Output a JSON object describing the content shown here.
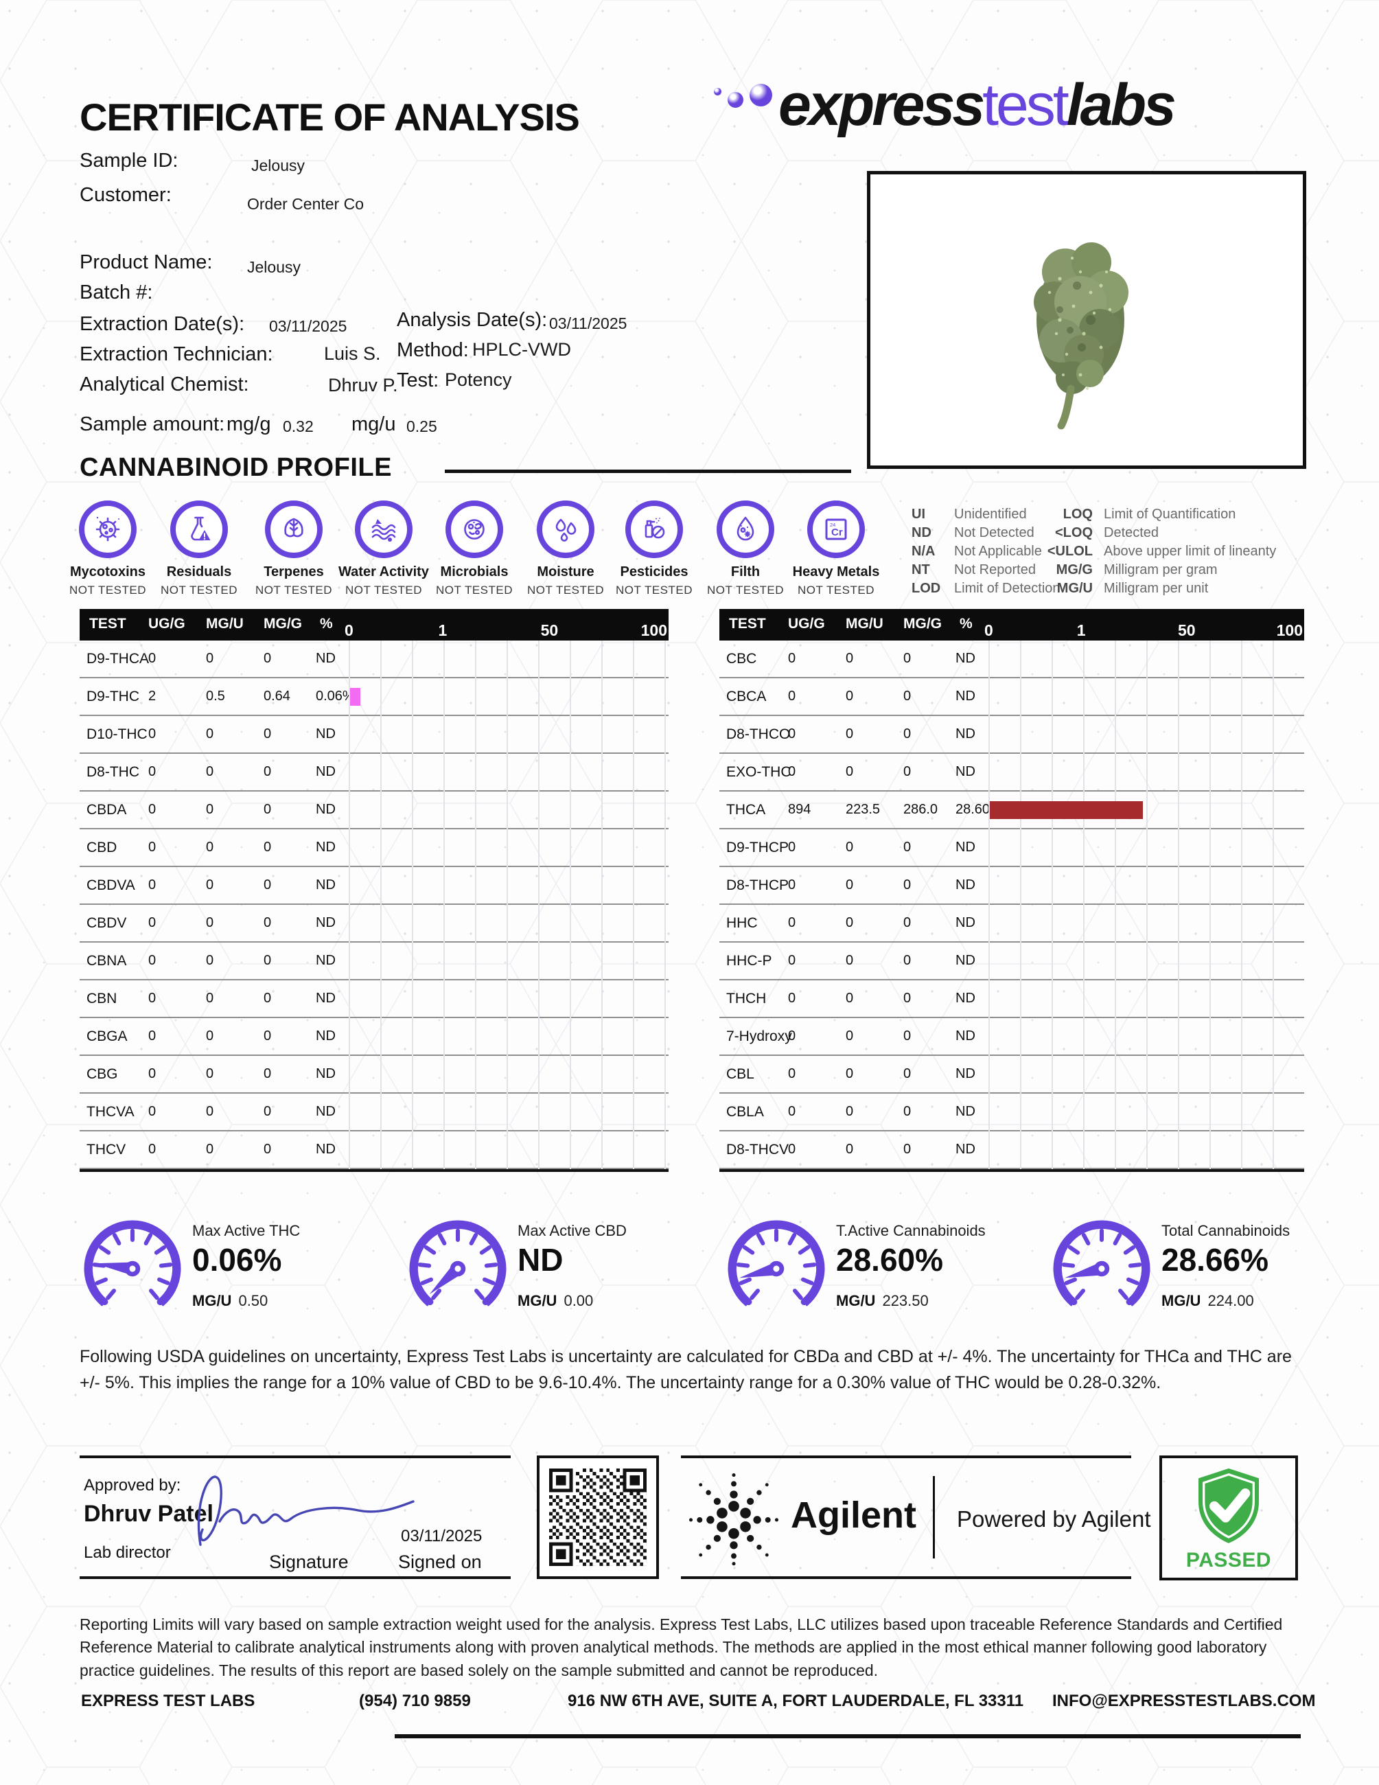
{
  "header": {
    "title": "CERTIFICATE OF ANALYSIS",
    "logo_express": "express",
    "logo_test": "test",
    "logo_labs": "labs"
  },
  "info": {
    "sample_id_label": "Sample ID:",
    "sample_id": "Jelousy",
    "customer_label": "Customer:",
    "customer": "Order Center Co",
    "product_name_label": "Product Name:",
    "product_name": "Jelousy",
    "batch_label": "Batch #:",
    "extraction_date_label": "Extraction Date(s):",
    "extraction_date": "03/11/2025",
    "analysis_date_label": "Analysis Date(s):",
    "analysis_date": "03/11/2025",
    "extraction_tech_label": "Extraction Technician:",
    "extraction_tech": "Luis S.",
    "method_label": "Method:",
    "method": "HPLC-VWD",
    "chemist_label": "Analytical Chemist:",
    "chemist": "Dhruv P.",
    "test_label": "Test:",
    "test": "Potency",
    "sample_amount_label": "Sample amount:",
    "mgg_label": "mg/g",
    "mgg_value": "0.32",
    "mgu_label": "mg/u",
    "mgu_value": "0.25"
  },
  "section_title": "CANNABINOID PROFILE",
  "screens": [
    {
      "name": "Mycotoxins",
      "status": "NOT TESTED"
    },
    {
      "name": "Residuals",
      "status": "NOT TESTED"
    },
    {
      "name": "Terpenes",
      "status": "NOT TESTED"
    },
    {
      "name": "Water Activity",
      "status": "NOT TESTED"
    },
    {
      "name": "Microbials",
      "status": "NOT TESTED"
    },
    {
      "name": "Moisture",
      "status": "NOT TESTED"
    },
    {
      "name": "Pesticides",
      "status": "NOT TESTED"
    },
    {
      "name": "Filth",
      "status": "NOT TESTED"
    },
    {
      "name": "Heavy Metals",
      "status": "NOT TESTED"
    }
  ],
  "legend_col1": [
    {
      "abbr": "UI",
      "desc": "Unidentified"
    },
    {
      "abbr": "ND",
      "desc": "Not Detected"
    },
    {
      "abbr": "N/A",
      "desc": "Not Applicable"
    },
    {
      "abbr": "NT",
      "desc": "Not Reported"
    },
    {
      "abbr": "LOD",
      "desc": "Limit of Detection"
    }
  ],
  "legend_col2": [
    {
      "abbr": "LOQ",
      "desc": "Limit of Quantification"
    },
    {
      "abbr": "<LOQ",
      "desc": "Detected"
    },
    {
      "abbr": "<ULOL",
      "desc": "Above upper limit of lineanty"
    },
    {
      "abbr": "MG/G",
      "desc": "Milligram per gram"
    },
    {
      "abbr": "MG/U",
      "desc": "Milligram per unit"
    }
  ],
  "table": {
    "headers": [
      "TEST",
      "UG/G",
      "MG/U",
      "MG/G",
      "%"
    ],
    "ticks": [
      "0",
      "1",
      "50",
      "100"
    ],
    "left_rows": [
      {
        "test": "D9-THCA",
        "ugg": "0",
        "mgu": "0",
        "mgg": "0",
        "pct": "ND",
        "bar": 0,
        "color": ""
      },
      {
        "test": "D9-THC",
        "ugg": "2",
        "mgu": "0.5",
        "mgg": "0.64",
        "pct": "0.06%",
        "bar": 3.2,
        "color": "#F26BF2"
      },
      {
        "test": "D10-THC",
        "ugg": "0",
        "mgu": "0",
        "mgg": "0",
        "pct": "ND",
        "bar": 0,
        "color": ""
      },
      {
        "test": "D8-THC",
        "ugg": "0",
        "mgu": "0",
        "mgg": "0",
        "pct": "ND",
        "bar": 0,
        "color": ""
      },
      {
        "test": "CBDA",
        "ugg": "0",
        "mgu": "0",
        "mgg": "0",
        "pct": "ND",
        "bar": 0,
        "color": ""
      },
      {
        "test": "CBD",
        "ugg": "0",
        "mgu": "0",
        "mgg": "0",
        "pct": "ND",
        "bar": 0,
        "color": ""
      },
      {
        "test": "CBDVA",
        "ugg": "0",
        "mgu": "0",
        "mgg": "0",
        "pct": "ND",
        "bar": 0,
        "color": ""
      },
      {
        "test": "CBDV",
        "ugg": "0",
        "mgu": "0",
        "mgg": "0",
        "pct": "ND",
        "bar": 0,
        "color": ""
      },
      {
        "test": "CBNA",
        "ugg": "0",
        "mgu": "0",
        "mgg": "0",
        "pct": "ND",
        "bar": 0,
        "color": ""
      },
      {
        "test": "CBN",
        "ugg": "0",
        "mgu": "0",
        "mgg": "0",
        "pct": "ND",
        "bar": 0,
        "color": ""
      },
      {
        "test": "CBGA",
        "ugg": "0",
        "mgu": "0",
        "mgg": "0",
        "pct": "ND",
        "bar": 0,
        "color": ""
      },
      {
        "test": "CBG",
        "ugg": "0",
        "mgu": "0",
        "mgg": "0",
        "pct": "ND",
        "bar": 0,
        "color": ""
      },
      {
        "test": "THCVA",
        "ugg": "0",
        "mgu": "0",
        "mgg": "0",
        "pct": "ND",
        "bar": 0,
        "color": ""
      },
      {
        "test": "THCV",
        "ugg": "0",
        "mgu": "0",
        "mgg": "0",
        "pct": "ND",
        "bar": 0,
        "color": ""
      }
    ],
    "right_rows": [
      {
        "test": "CBC",
        "ugg": "0",
        "mgu": "0",
        "mgg": "0",
        "pct": "ND",
        "bar": 0,
        "color": ""
      },
      {
        "test": "CBCA",
        "ugg": "0",
        "mgu": "0",
        "mgg": "0",
        "pct": "ND",
        "bar": 0,
        "color": ""
      },
      {
        "test": "D8-THCO",
        "ugg": "0",
        "mgu": "0",
        "mgg": "0",
        "pct": "ND",
        "bar": 0,
        "color": ""
      },
      {
        "test": "EXO-THC",
        "ugg": "0",
        "mgu": "0",
        "mgg": "0",
        "pct": "ND",
        "bar": 0,
        "color": ""
      },
      {
        "test": "THCA",
        "ugg": "894",
        "mgu": "223.5",
        "mgg": "286.0",
        "pct": "28.60%",
        "bar": 48.5,
        "color": "#A62B2C"
      },
      {
        "test": "D9-THCP",
        "ugg": "0",
        "mgu": "0",
        "mgg": "0",
        "pct": "ND",
        "bar": 0,
        "color": ""
      },
      {
        "test": "D8-THCP",
        "ugg": "0",
        "mgu": "0",
        "mgg": "0",
        "pct": "ND",
        "bar": 0,
        "color": ""
      },
      {
        "test": "HHC",
        "ugg": "0",
        "mgu": "0",
        "mgg": "0",
        "pct": "ND",
        "bar": 0,
        "color": ""
      },
      {
        "test": "HHC-P",
        "ugg": "0",
        "mgu": "0",
        "mgg": "0",
        "pct": "ND",
        "bar": 0,
        "color": ""
      },
      {
        "test": "THCH",
        "ugg": "0",
        "mgu": "0",
        "mgg": "0",
        "pct": "ND",
        "bar": 0,
        "color": ""
      },
      {
        "test": "7-Hydroxy",
        "ugg": "0",
        "mgu": "0",
        "mgg": "0",
        "pct": "ND",
        "bar": 0,
        "color": ""
      },
      {
        "test": "CBL",
        "ugg": "0",
        "mgu": "0",
        "mgg": "0",
        "pct": "ND",
        "bar": 0,
        "color": ""
      },
      {
        "test": "CBLA",
        "ugg": "0",
        "mgu": "0",
        "mgg": "0",
        "pct": "ND",
        "bar": 0,
        "color": ""
      },
      {
        "test": "D8-THCV",
        "ugg": "0",
        "mgu": "0",
        "mgg": "0",
        "pct": "ND",
        "bar": 0,
        "color": ""
      }
    ]
  },
  "gauges": [
    {
      "title": "Max Active THC",
      "value": "0.06%",
      "unit_label": "MG/U",
      "unit_value": "0.50",
      "needle_angle": 8
    },
    {
      "title": "Max Active CBD",
      "value": "ND",
      "unit_label": "MG/U",
      "unit_value": "0.00",
      "needle_angle": -42
    },
    {
      "title": "T.Active Cannabinoids",
      "value": "28.60%",
      "unit_label": "MG/U",
      "unit_value": "223.50",
      "needle_angle": -14
    },
    {
      "title": "Total Cannabinoids",
      "value": "28.66%",
      "unit_label": "MG/U",
      "unit_value": "224.00",
      "needle_angle": -14
    }
  ],
  "uncertainty_note": "Following USDA guidelines on uncertainty, Express Test Labs is uncertainty are calculated for CBDa and CBD at +/- 4%. The uncertainty for THCa and THC are +/- 5%. This implies the range for a 10% value of CBD to be 9.6-10.4%. The uncertainty range for a 0.30% value of THC would be 0.28-0.32%.",
  "approval": {
    "approved_by_label": "Approved by:",
    "name": "Dhruv Patel",
    "role": "Lab director",
    "signature_label": "Signature",
    "date": "03/11/2025",
    "signed_on_label": "Signed on"
  },
  "agilent": {
    "name": "Agilent",
    "tagline": "Powered by Agilent"
  },
  "passed": {
    "label": "PASSED"
  },
  "disclaimer": "Reporting Limits will vary based on sample extraction weight used for the analysis. Express Test Labs, LLC utilizes based upon traceable Reference Standards and Certified Reference Material to calibrate analytical instruments along with proven analytical methods. The methods are applied in the most ethical manner following good laboratory practice guidelines. The results of this report are based solely on the sample submitted and cannot be reproduced.",
  "footer": {
    "company": "EXPRESS TEST LABS",
    "phone": "(954) 710 9859",
    "address": "916 NW 6TH AVE, SUITE A, FORT LAUDERDALE, FL 33311",
    "email": "INFO@EXPRESSTESTLABS.COM"
  },
  "colors": {
    "accent_purple": "#6745DD",
    "thc_bar_pink": "#F26BF2",
    "thca_bar_red": "#A62B2C",
    "passed_green": "#3FAE49"
  }
}
